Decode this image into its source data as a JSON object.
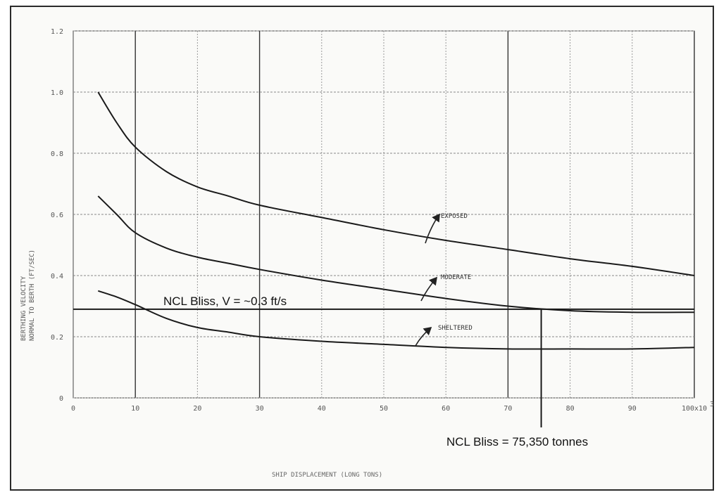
{
  "chart_data": {
    "type": "line",
    "title": "",
    "xlabel": "SHIP DISPLACEMENT (LONG TONS)",
    "ylabel_lines": [
      "BERTHING VELOCITY",
      "NORMAL TO BERTH (FT/SEC)"
    ],
    "xlim": [
      0,
      100
    ],
    "ylim": [
      0,
      1.2
    ],
    "x_ticks": [
      0,
      10,
      20,
      30,
      40,
      50,
      60,
      70,
      80,
      90,
      100
    ],
    "x_tick_labels": [
      "0",
      "10",
      "20",
      "30",
      "40",
      "50",
      "60",
      "70",
      "80",
      "90",
      "100x10"
    ],
    "x_multiplier_suffix": "3",
    "y_ticks": [
      0,
      0.2,
      0.4,
      0.6,
      0.8,
      1.0,
      1.2
    ],
    "y_tick_labels": [
      "0",
      "0.2",
      "0.4",
      "0.6",
      "0.8",
      "1.0",
      "1.2"
    ],
    "grid": true,
    "series": [
      {
        "name": "EXPOSED",
        "x": [
          4,
          7,
          10,
          15,
          20,
          25,
          30,
          40,
          50,
          60,
          70,
          80,
          90,
          100
        ],
        "y": [
          1.0,
          0.9,
          0.82,
          0.74,
          0.69,
          0.66,
          0.63,
          0.59,
          0.55,
          0.515,
          0.485,
          0.455,
          0.43,
          0.4
        ]
      },
      {
        "name": "MODERATE",
        "x": [
          4,
          7,
          10,
          15,
          20,
          25,
          30,
          40,
          50,
          60,
          70,
          80,
          90,
          100
        ],
        "y": [
          0.66,
          0.6,
          0.54,
          0.49,
          0.46,
          0.44,
          0.42,
          0.385,
          0.355,
          0.325,
          0.3,
          0.285,
          0.28,
          0.28
        ]
      },
      {
        "name": "SHELTERED",
        "x": [
          4,
          7,
          10,
          15,
          20,
          25,
          30,
          40,
          50,
          60,
          70,
          80,
          90,
          100
        ],
        "y": [
          0.35,
          0.33,
          0.305,
          0.26,
          0.23,
          0.215,
          0.2,
          0.185,
          0.175,
          0.165,
          0.16,
          0.16,
          0.16,
          0.165
        ]
      }
    ],
    "reference_lines": {
      "horizontal": {
        "y": 0.29,
        "label": "NCL Bliss, V = ~0.3 ft/s"
      },
      "vertical": {
        "x": 75.35,
        "label": "NCL Bliss = 75,350 tonnes"
      }
    }
  }
}
